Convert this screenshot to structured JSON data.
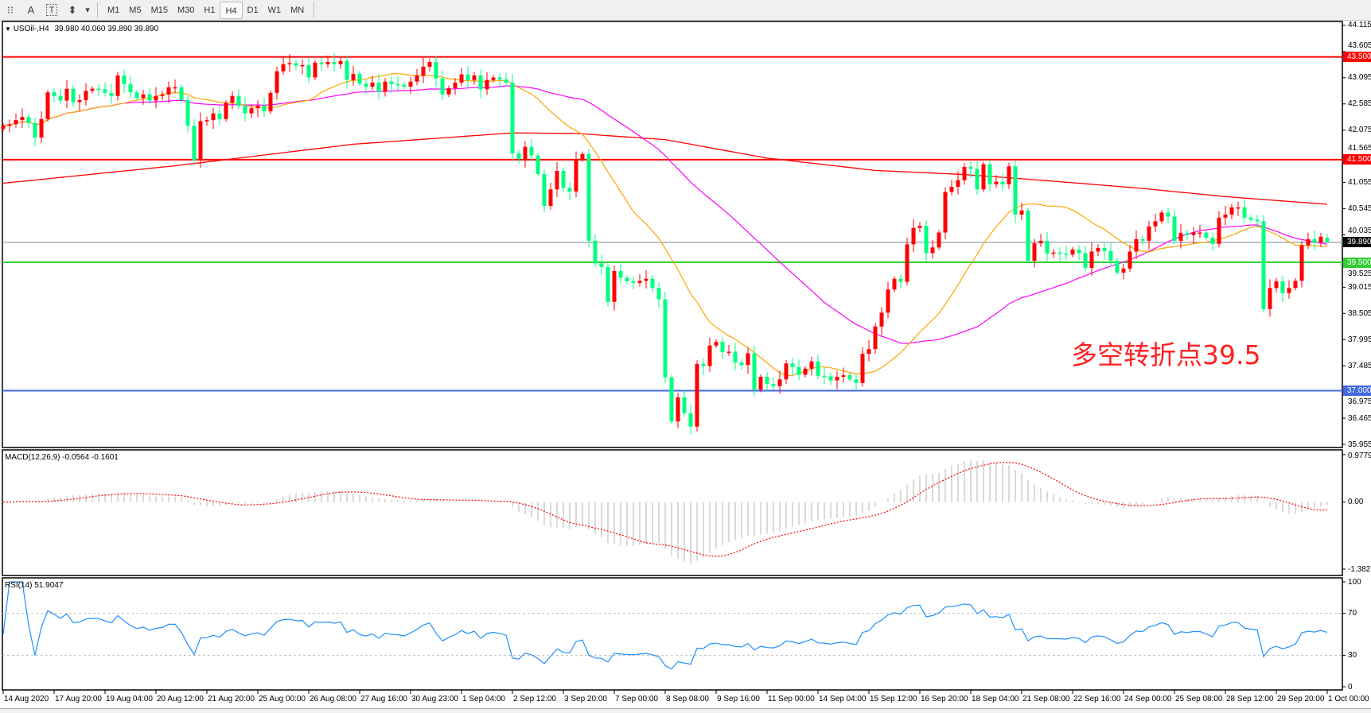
{
  "toolbar": {
    "tools": [
      {
        "name": "crosshair-grid-icon",
        "glyph": "⁝⁝"
      },
      {
        "name": "text-icon",
        "glyph": "A"
      },
      {
        "name": "text-label-icon",
        "glyph": "T"
      },
      {
        "name": "arrows-icon",
        "glyph": "⬍"
      }
    ],
    "dropdown_glyph": "▾",
    "timeframes": [
      "M1",
      "M5",
      "M15",
      "M30",
      "H1",
      "H4",
      "D1",
      "W1",
      "MN"
    ],
    "active_timeframe": "H4"
  },
  "header": {
    "arrow": "▼",
    "symbol": "USOil-,H4",
    "ohlc": "39.980 40.060 39.890 39.890"
  },
  "annotation": "多空转折点39.5",
  "colors": {
    "bull": "#ff0000",
    "bear": "#00ff80",
    "ma_fast": "#ffa500",
    "ma_mid": "#ff00ff",
    "ma_slow": "#ff0000",
    "macd_hist": "#c0c0c0",
    "macd_signal": "#ff0000",
    "rsi": "#1e90ff",
    "bid_line": "#778899"
  },
  "price_axis": {
    "ticks": [
      "44.115",
      "43.605",
      "43.095",
      "42.585",
      "42.075",
      "41.565",
      "41.055",
      "40.545",
      "40.035",
      "39.525",
      "39.015",
      "38.505",
      "37.995",
      "37.485",
      "36.975",
      "36.465",
      "35.955"
    ],
    "range": [
      35.955,
      44.115
    ]
  },
  "levels": [
    {
      "price": 43.5,
      "label": "43.500",
      "color": "#ff0000"
    },
    {
      "price": 41.5,
      "label": "41.500",
      "color": "#ff0000"
    },
    {
      "price": 39.5,
      "label": "39.500",
      "color": "#32cd32"
    },
    {
      "price": 37.0,
      "label": "37.000",
      "color": "#4169e1"
    }
  ],
  "bid": {
    "price": 39.89,
    "label": "39.890"
  },
  "candles": {
    "closes": [
      42.16,
      42.19,
      42.27,
      42.33,
      42.21,
      41.93,
      42.29,
      42.81,
      42.74,
      42.65,
      42.88,
      42.62,
      42.66,
      42.84,
      42.88,
      42.87,
      42.8,
      42.74,
      43.14,
      42.97,
      42.81,
      42.7,
      42.77,
      42.65,
      42.74,
      42.77,
      42.91,
      42.91,
      42.66,
      42.16,
      41.49,
      42.25,
      42.27,
      42.4,
      42.29,
      42.61,
      42.74,
      42.55,
      42.4,
      42.5,
      42.55,
      42.44,
      42.8,
      43.22,
      43.36,
      43.38,
      43.33,
      43.34,
      43.1,
      43.39,
      43.36,
      43.4,
      43.36,
      43.42,
      43.05,
      43.17,
      42.98,
      42.92,
      43.0,
      42.82,
      43.02,
      42.97,
      42.96,
      42.92,
      43.02,
      43.14,
      43.31,
      43.4,
      43.08,
      42.77,
      42.89,
      43.0,
      43.16,
      43.05,
      43.14,
      42.87,
      43.05,
      43.1,
      43.06,
      43.0,
      41.62,
      41.51,
      41.75,
      41.58,
      41.22,
      40.6,
      40.92,
      41.28,
      40.95,
      40.88,
      41.51,
      41.61,
      39.92,
      39.48,
      39.41,
      38.73,
      39.33,
      39.2,
      39.13,
      39.1,
      39.14,
      39.18,
      39.0,
      38.78,
      37.26,
      36.4,
      36.87,
      36.56,
      36.3,
      37.52,
      37.48,
      37.88,
      37.95,
      37.75,
      37.76,
      37.55,
      37.5,
      37.73,
      37.02,
      37.27,
      37.13,
      37.09,
      37.22,
      37.53,
      37.46,
      37.31,
      37.43,
      37.57,
      37.29,
      37.28,
      37.2,
      37.27,
      37.3,
      37.22,
      37.15,
      37.72,
      37.81,
      38.25,
      38.52,
      38.97,
      39.18,
      39.12,
      39.85,
      40.17,
      40.21,
      39.68,
      39.79,
      40.08,
      40.87,
      40.97,
      41.1,
      41.36,
      41.32,
      40.92,
      41.41,
      41.02,
      41.07,
      41.02,
      41.37,
      40.43,
      40.51,
      39.53,
      39.87,
      39.92,
      39.67,
      39.69,
      39.67,
      39.65,
      39.75,
      39.68,
      39.39,
      39.71,
      39.78,
      39.72,
      39.53,
      39.3,
      39.38,
      39.71,
      39.95,
      39.92,
      40.2,
      40.3,
      40.47,
      40.39,
      39.92,
      40.07,
      40.03,
      40.08,
      40.08,
      39.98,
      39.86,
      40.37,
      40.43,
      40.57,
      40.57,
      40.37,
      40.33,
      40.3,
      38.59,
      39.0,
      39.13,
      38.9,
      39.0,
      39.14,
      39.83,
      39.95,
      39.89,
      40.0,
      39.89
    ],
    "first_open": 42.1,
    "last_open": 39.98,
    "last_high": 40.06,
    "last_low": 39.89
  },
  "ma_slow": [
    [
      0,
      41.04
    ],
    [
      27,
      41.38
    ],
    [
      55,
      41.8
    ],
    [
      80,
      42.02
    ],
    [
      90,
      42.01
    ],
    [
      104,
      41.89
    ],
    [
      120,
      41.53
    ],
    [
      137,
      41.29
    ],
    [
      151,
      41.21
    ],
    [
      164,
      41.09
    ],
    [
      178,
      40.95
    ],
    [
      192,
      40.78
    ],
    [
      208,
      40.63
    ]
  ],
  "macd": {
    "label": "MACD(12,26,9) -0.0564 -0.1601",
    "ticks": [
      "0.9779",
      "0.00",
      "-1.382"
    ],
    "range": [
      -1.382,
      0.9779
    ]
  },
  "rsi": {
    "label": "RSI(14) 51.9047",
    "ticks": [
      "100",
      "70",
      "30",
      "0"
    ]
  },
  "time_axis": [
    "14 Aug 2020",
    "17 Aug 20:00",
    "19 Aug 04:00",
    "20 Aug 12:00",
    "21 Aug 20:00",
    "25 Aug 00:00",
    "26 Aug 08:00",
    "27 Aug 16:00",
    "30 Aug 23:00",
    "1 Sep 04:00",
    "2 Sep 12:00",
    "3 Sep 20:00",
    "7 Sep 00:00",
    "8 Sep 08:00",
    "9 Sep 16:00",
    "11 Sep 00:00",
    "14 Sep 04:00",
    "15 Sep 12:00",
    "16 Sep 20:00",
    "18 Sep 04:00",
    "21 Sep 08:00",
    "22 Sep 16:00",
    "24 Sep 00:00",
    "25 Sep 08:00",
    "28 Sep 12:00",
    "29 Sep 20:00",
    "1 Oct 00:00"
  ]
}
